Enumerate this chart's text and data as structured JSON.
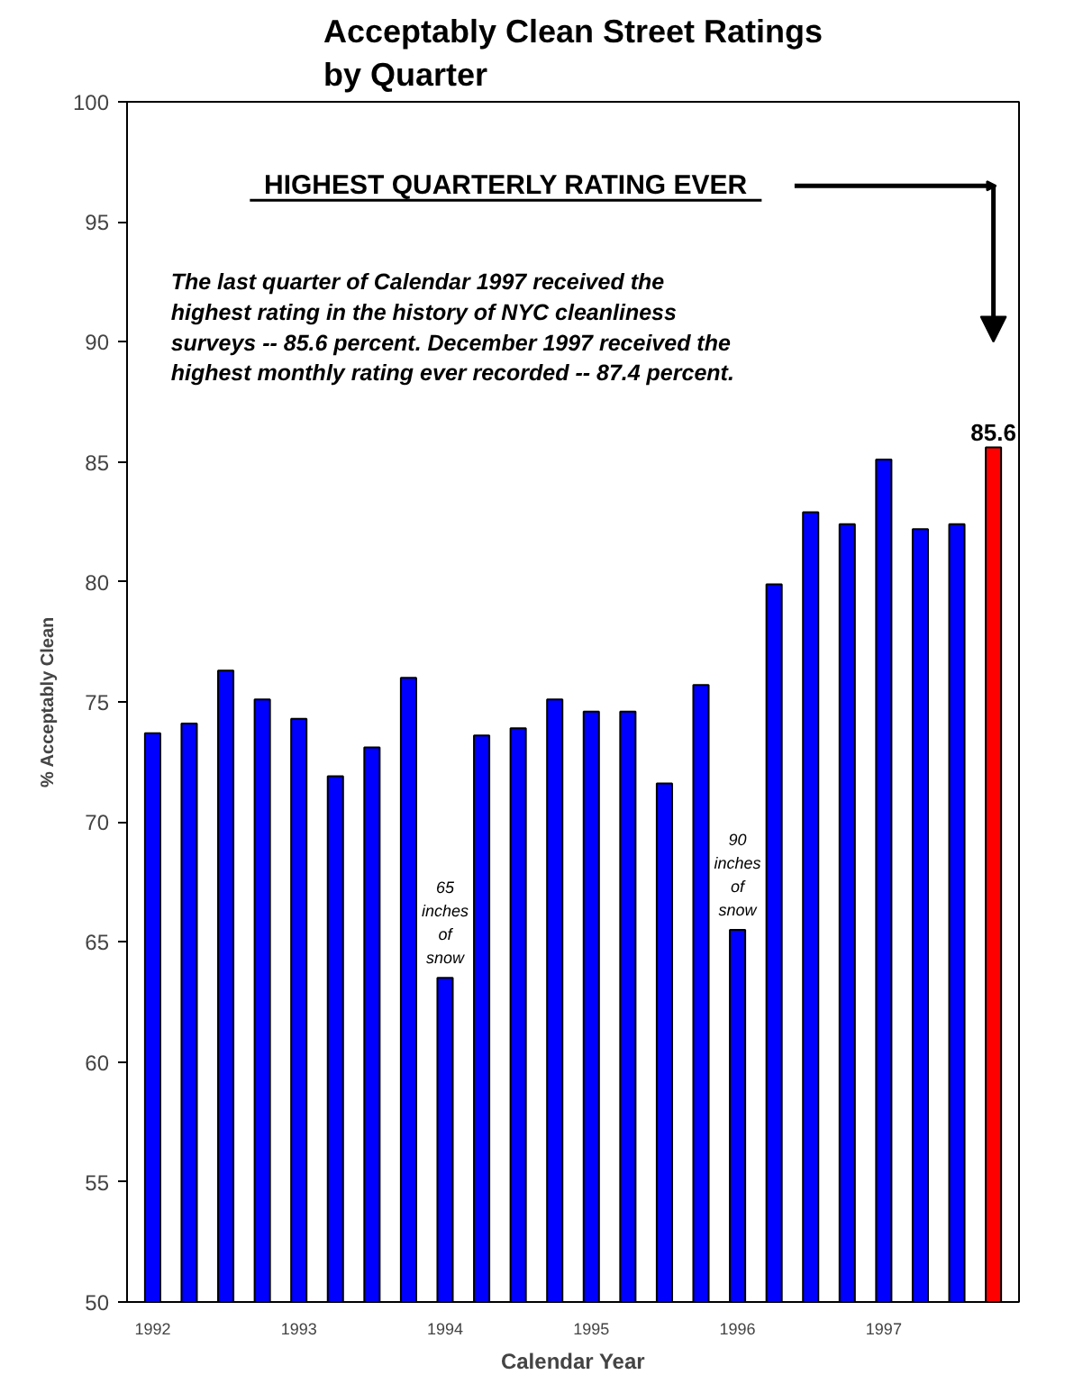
{
  "chart_data": {
    "type": "bar",
    "title": "Acceptably Clean Street Ratings\nby Quarter",
    "xlabel": "Calendar Year",
    "ylabel": "% Acceptably Clean",
    "categories": [
      "1992",
      null,
      null,
      null,
      "1993",
      null,
      null,
      null,
      "1994",
      null,
      null,
      null,
      "1995",
      null,
      null,
      null,
      "1996",
      null,
      null,
      null,
      "1997",
      null,
      null,
      null
    ],
    "values": [
      73.7,
      74.1,
      76.3,
      75.1,
      74.3,
      71.9,
      73.1,
      76.0,
      63.5,
      73.6,
      73.9,
      75.1,
      74.6,
      74.6,
      71.6,
      75.7,
      65.5,
      79.9,
      82.9,
      82.4,
      85.1,
      82.2,
      82.4,
      85.6
    ],
    "colors": [
      "#0000ff",
      "#0000ff",
      "#0000ff",
      "#0000ff",
      "#0000ff",
      "#0000ff",
      "#0000ff",
      "#0000ff",
      "#0000ff",
      "#0000ff",
      "#0000ff",
      "#0000ff",
      "#0000ff",
      "#0000ff",
      "#0000ff",
      "#0000ff",
      "#0000ff",
      "#0000ff",
      "#0000ff",
      "#0000ff",
      "#0000ff",
      "#0000ff",
      "#0000ff",
      "#ff0000"
    ],
    "value_labels": [
      null,
      null,
      null,
      null,
      null,
      null,
      null,
      null,
      null,
      null,
      null,
      null,
      null,
      null,
      null,
      null,
      null,
      null,
      null,
      null,
      null,
      null,
      null,
      "85.6"
    ],
    "ylim": [
      50,
      100
    ],
    "yticks": [
      50,
      55,
      60,
      65,
      70,
      75,
      80,
      85,
      90,
      95,
      100
    ],
    "grid": false,
    "annotations": [
      "HIGHEST QUARTERLY RATING EVER",
      "The last quarter of Calendar 1997 received the\nhighest rating in the history of NYC cleanliness\nsurveys -- 85.6 percent. December 1997 received the\nhighest monthly rating ever recorded -- 87.4 percent.",
      {
        "text": "65\ninches\nof\nsnow",
        "x": "1994",
        "y": 63.5
      },
      {
        "text": "90\ninches\nof\nsnow",
        "x": "1996",
        "y": 65.5
      }
    ]
  }
}
